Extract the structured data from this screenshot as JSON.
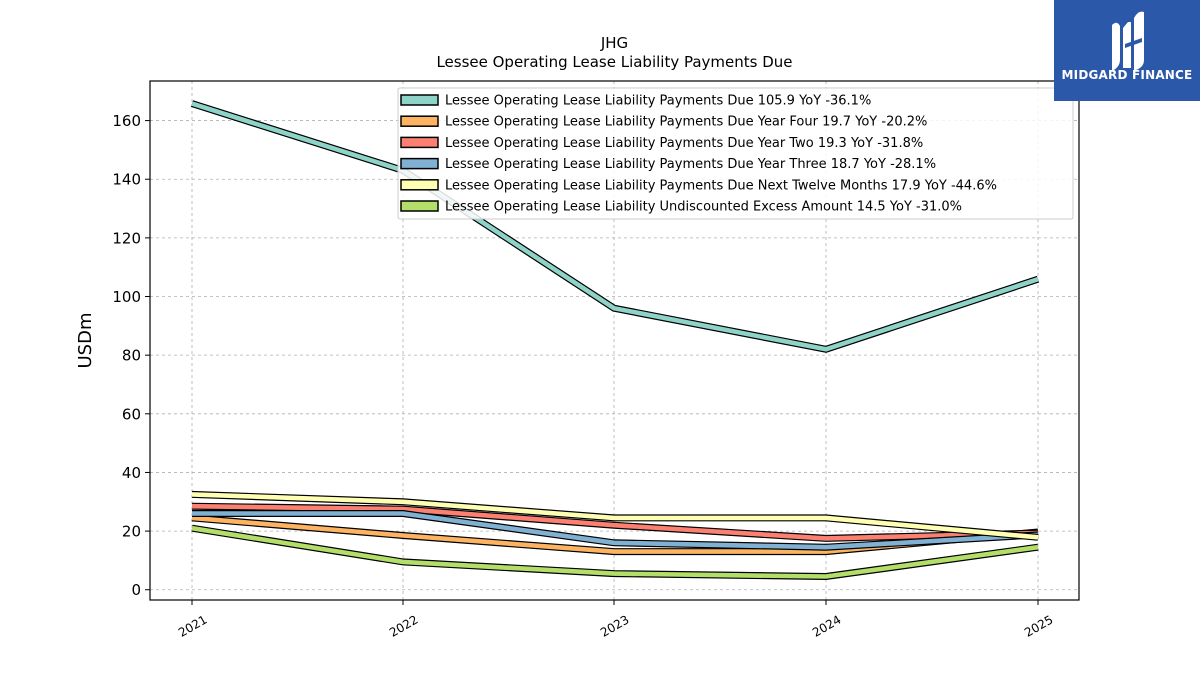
{
  "chart_data": {
    "type": "line",
    "title": "JHG",
    "subtitle": "Lessee Operating Lease Liability Payments Due",
    "xlabel": "",
    "ylabel": "USDm",
    "categories": [
      "2021",
      "2022",
      "2023",
      "2024",
      "2025"
    ],
    "ylim": [
      -3.5,
      173.5
    ],
    "yticks": [
      0,
      20,
      40,
      60,
      80,
      100,
      120,
      140,
      160
    ],
    "grid": true,
    "legend_position": "top-right",
    "series": [
      {
        "name": "Lessee Operating Lease Liability Payments Due  105.9 YoY -36.1%",
        "color": "#8dd3c7",
        "values": [
          165.8,
          143.0,
          96.0,
          82.0,
          105.9
        ]
      },
      {
        "name": "Lessee Operating Lease Liability Payments Due Year Four  19.7 YoY -20.2%",
        "color": "#fdb462",
        "values": [
          24.5,
          18.5,
          13.0,
          13.0,
          19.7
        ]
      },
      {
        "name": "Lessee Operating Lease Liability Payments Due Year Two  19.3 YoY -31.8%",
        "color": "#fb8072",
        "values": [
          28.5,
          27.5,
          22.0,
          17.5,
          19.3
        ]
      },
      {
        "name": "Lessee Operating Lease Liability Payments Due Year Three  18.7 YoY -28.1%",
        "color": "#80b1d3",
        "values": [
          26.0,
          26.0,
          16.0,
          14.5,
          18.7
        ]
      },
      {
        "name": "Lessee Operating Lease Liability Payments Due Next Twelve Months  17.9 YoY -44.6%",
        "color": "#ffffb3",
        "values": [
          32.5,
          30.0,
          24.5,
          24.5,
          17.9
        ]
      },
      {
        "name": "Lessee Operating Lease Liability Undiscounted Excess Amount  14.5 YoY -31.0%",
        "color": "#b3de69",
        "values": [
          21.0,
          9.5,
          5.5,
          4.5,
          14.5
        ]
      }
    ]
  },
  "logo": {
    "text": "MIDGARD FINANCE"
  }
}
